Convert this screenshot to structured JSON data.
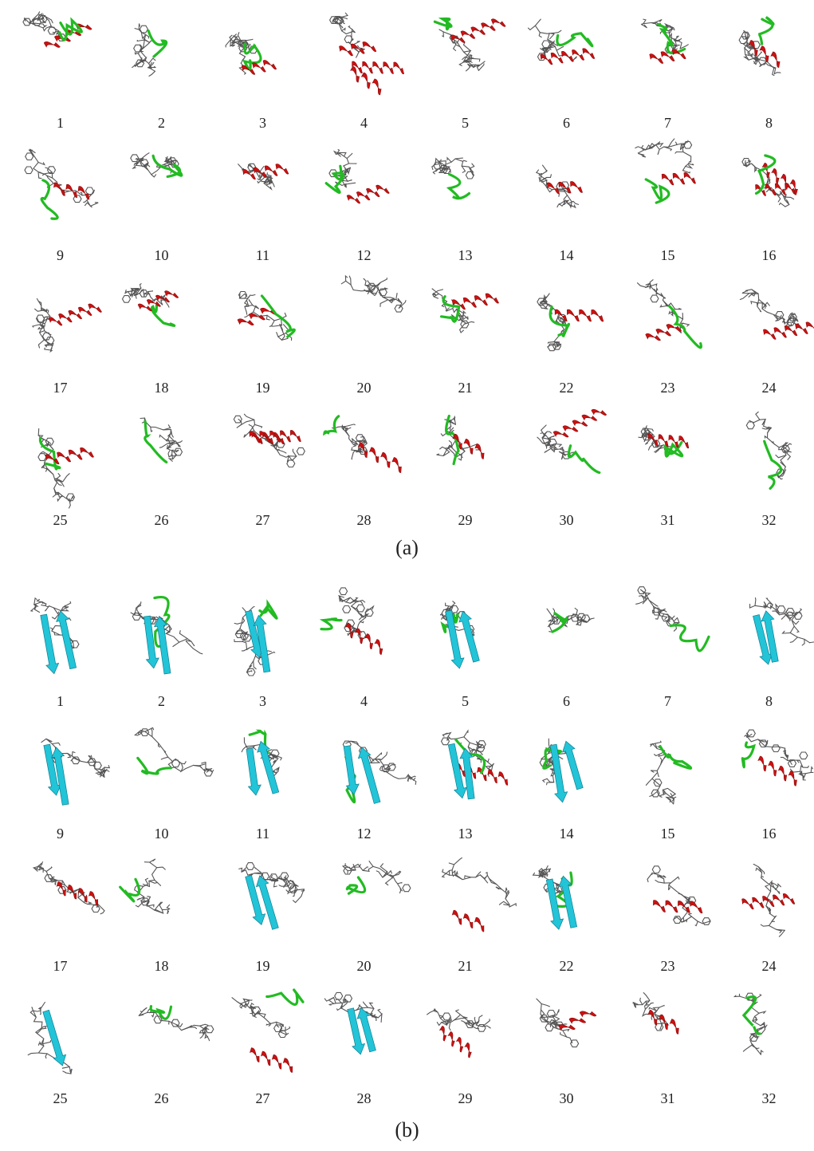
{
  "panels": [
    {
      "label": "(a)",
      "structures": [
        {
          "n": "1",
          "elements": [
            "helix",
            "coil"
          ]
        },
        {
          "n": "2",
          "elements": [
            "coil"
          ]
        },
        {
          "n": "3",
          "elements": [
            "coil",
            "helix"
          ]
        },
        {
          "n": "4",
          "elements": [
            "helix",
            "helix",
            "helix"
          ]
        },
        {
          "n": "5",
          "elements": [
            "coil",
            "helix"
          ]
        },
        {
          "n": "6",
          "elements": [
            "helix",
            "coil"
          ]
        },
        {
          "n": "7",
          "elements": [
            "coil",
            "helix"
          ]
        },
        {
          "n": "8",
          "elements": [
            "coil",
            "helix"
          ]
        },
        {
          "n": "9",
          "elements": [
            "coil",
            "helix"
          ]
        },
        {
          "n": "10",
          "elements": [
            "coil"
          ]
        },
        {
          "n": "11",
          "elements": [
            "helix"
          ]
        },
        {
          "n": "12",
          "elements": [
            "coil",
            "helix"
          ]
        },
        {
          "n": "13",
          "elements": [
            "coil"
          ]
        },
        {
          "n": "14",
          "elements": [
            "helix"
          ]
        },
        {
          "n": "15",
          "elements": [
            "coil",
            "helix"
          ]
        },
        {
          "n": "16",
          "elements": [
            "helix",
            "helix",
            "coil"
          ]
        },
        {
          "n": "17",
          "elements": [
            "helix"
          ]
        },
        {
          "n": "18",
          "elements": [
            "coil",
            "helix"
          ]
        },
        {
          "n": "19",
          "elements": [
            "helix",
            "coil"
          ]
        },
        {
          "n": "20",
          "elements": []
        },
        {
          "n": "21",
          "elements": [
            "helix",
            "coil"
          ]
        },
        {
          "n": "22",
          "elements": [
            "coil",
            "helix"
          ]
        },
        {
          "n": "23",
          "elements": [
            "coil",
            "helix"
          ]
        },
        {
          "n": "24",
          "elements": [
            "helix"
          ]
        },
        {
          "n": "25",
          "elements": [
            "coil",
            "helix"
          ]
        },
        {
          "n": "26",
          "elements": [
            "coil"
          ]
        },
        {
          "n": "27",
          "elements": [
            "helix",
            "helix"
          ]
        },
        {
          "n": "28",
          "elements": [
            "coil",
            "helix"
          ]
        },
        {
          "n": "29",
          "elements": [
            "coil",
            "helix"
          ]
        },
        {
          "n": "30",
          "elements": [
            "coil",
            "helix"
          ]
        },
        {
          "n": "31",
          "elements": [
            "coil",
            "helix"
          ]
        },
        {
          "n": "32",
          "elements": [
            "coil"
          ]
        }
      ]
    },
    {
      "label": "(b)",
      "structures": [
        {
          "n": "1",
          "elements": [
            "sheet",
            "sheet"
          ]
        },
        {
          "n": "2",
          "elements": [
            "coil",
            "sheet",
            "sheet"
          ]
        },
        {
          "n": "3",
          "elements": [
            "coil",
            "sheet",
            "sheet"
          ]
        },
        {
          "n": "4",
          "elements": [
            "coil",
            "helix"
          ]
        },
        {
          "n": "5",
          "elements": [
            "coil",
            "sheet",
            "sheet"
          ]
        },
        {
          "n": "6",
          "elements": [
            "coil"
          ]
        },
        {
          "n": "7",
          "elements": [
            "coil"
          ]
        },
        {
          "n": "8",
          "elements": [
            "sheet",
            "sheet"
          ]
        },
        {
          "n": "9",
          "elements": [
            "sheet",
            "sheet"
          ]
        },
        {
          "n": "10",
          "elements": [
            "coil"
          ]
        },
        {
          "n": "11",
          "elements": [
            "coil",
            "sheet",
            "sheet"
          ]
        },
        {
          "n": "12",
          "elements": [
            "coil",
            "sheet",
            "sheet"
          ]
        },
        {
          "n": "13",
          "elements": [
            "helix",
            "coil",
            "sheet",
            "sheet"
          ]
        },
        {
          "n": "14",
          "elements": [
            "coil",
            "sheet",
            "sheet"
          ]
        },
        {
          "n": "15",
          "elements": [
            "coil"
          ]
        },
        {
          "n": "16",
          "elements": [
            "coil",
            "helix"
          ]
        },
        {
          "n": "17",
          "elements": [
            "helix"
          ]
        },
        {
          "n": "18",
          "elements": [
            "coil"
          ]
        },
        {
          "n": "19",
          "elements": [
            "sheet",
            "sheet"
          ]
        },
        {
          "n": "20",
          "elements": [
            "coil"
          ]
        },
        {
          "n": "21",
          "elements": [
            "helix"
          ]
        },
        {
          "n": "22",
          "elements": [
            "coil",
            "sheet",
            "sheet"
          ]
        },
        {
          "n": "23",
          "elements": [
            "helix"
          ]
        },
        {
          "n": "24",
          "elements": [
            "helix"
          ]
        },
        {
          "n": "25",
          "elements": [
            "sheet"
          ]
        },
        {
          "n": "26",
          "elements": [
            "coil"
          ]
        },
        {
          "n": "27",
          "elements": [
            "helix",
            "coil"
          ]
        },
        {
          "n": "28",
          "elements": [
            "sheet",
            "sheet"
          ]
        },
        {
          "n": "29",
          "elements": [
            "helix"
          ]
        },
        {
          "n": "30",
          "elements": [
            "helix"
          ]
        },
        {
          "n": "31",
          "elements": [
            "helix"
          ]
        },
        {
          "n": "32",
          "elements": [
            "coil"
          ]
        }
      ]
    }
  ],
  "colors": {
    "helix": "#cc1111",
    "sheet": "#22c4d8",
    "coil": "#22bb22",
    "sticks": "#555555"
  }
}
